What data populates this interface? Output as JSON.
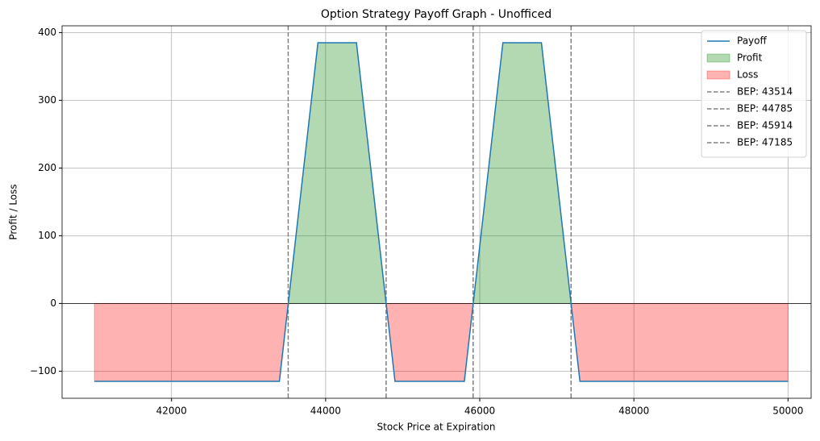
{
  "chart_data": {
    "type": "line",
    "title": "Option Strategy Payoff Graph - Unofficed",
    "x_label": "Stock Price at Expiration",
    "y_label": "Profit / Loss",
    "x": [
      41000,
      43400,
      43900,
      44400,
      44900,
      45800,
      46300,
      46800,
      47300,
      50000
    ],
    "series": [
      {
        "name": "Payoff",
        "color": "#1f77b4",
        "values": [
          -115,
          -115,
          385,
          385,
          -115,
          -115,
          385,
          385,
          -115,
          -115
        ]
      }
    ],
    "fills": [
      {
        "name": "Profit",
        "color": "#008000",
        "opacity": 0.3,
        "where": "positive"
      },
      {
        "name": "Loss",
        "color": "#ff0000",
        "opacity": 0.3,
        "where": "negative"
      }
    ],
    "vlines": [
      {
        "name": "BEP: 43514",
        "value": 43514,
        "color": "#808080"
      },
      {
        "name": "BEP: 44785",
        "value": 44785,
        "color": "#808080"
      },
      {
        "name": "BEP: 45914",
        "value": 45914,
        "color": "#808080"
      },
      {
        "name": "BEP: 47185",
        "value": 47185,
        "color": "#808080"
      }
    ],
    "xlim": [
      40580,
      50300
    ],
    "xticks": [
      42000,
      44000,
      46000,
      48000,
      50000
    ],
    "ylim": [
      -140,
      410
    ],
    "yticks": [
      {
        "value": -100,
        "label": "−100"
      },
      0,
      100,
      200,
      300,
      400
    ],
    "grid": true,
    "legend": "upper right"
  }
}
